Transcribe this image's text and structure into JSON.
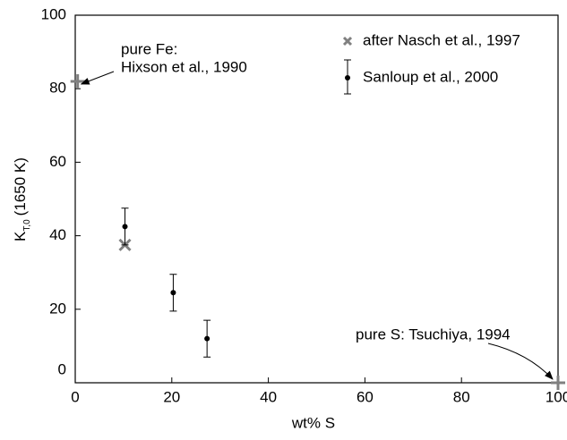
{
  "chart_data": {
    "type": "scatter",
    "xlabel": "wt% S",
    "ylabel": {
      "main": "K",
      "sub": "T,0",
      "rest": "(1650 K)"
    },
    "xlim": [
      0,
      100
    ],
    "xticks": [
      0,
      20,
      40,
      60,
      80,
      100
    ],
    "ylim": [
      0,
      100
    ],
    "yticks": [
      0,
      20,
      40,
      60,
      80,
      100
    ],
    "legend": "upper right",
    "series": [
      {
        "name": "after Nasch et al., 1997",
        "color": "#808080",
        "marker": "x",
        "x": [
          10.3
        ],
        "values": [
          37.5
        ]
      },
      {
        "name": "Sanloup et al., 2000",
        "color": "#000000",
        "marker": "errorbar",
        "x": [
          10.3,
          20.3,
          27.3
        ],
        "values": [
          42.5,
          24.5,
          12
        ],
        "errors": [
          5,
          5,
          5
        ]
      }
    ],
    "annotations": [
      {
        "lines": [
          "pure Fe:",
          "Hixson et al., 1990"
        ],
        "x": 0.5,
        "y": 82,
        "color": "#808080"
      },
      {
        "lines": [
          "pure S: Tsuchiya, 1994"
        ],
        "x": 100,
        "y": 0,
        "color": "#808080"
      }
    ]
  }
}
